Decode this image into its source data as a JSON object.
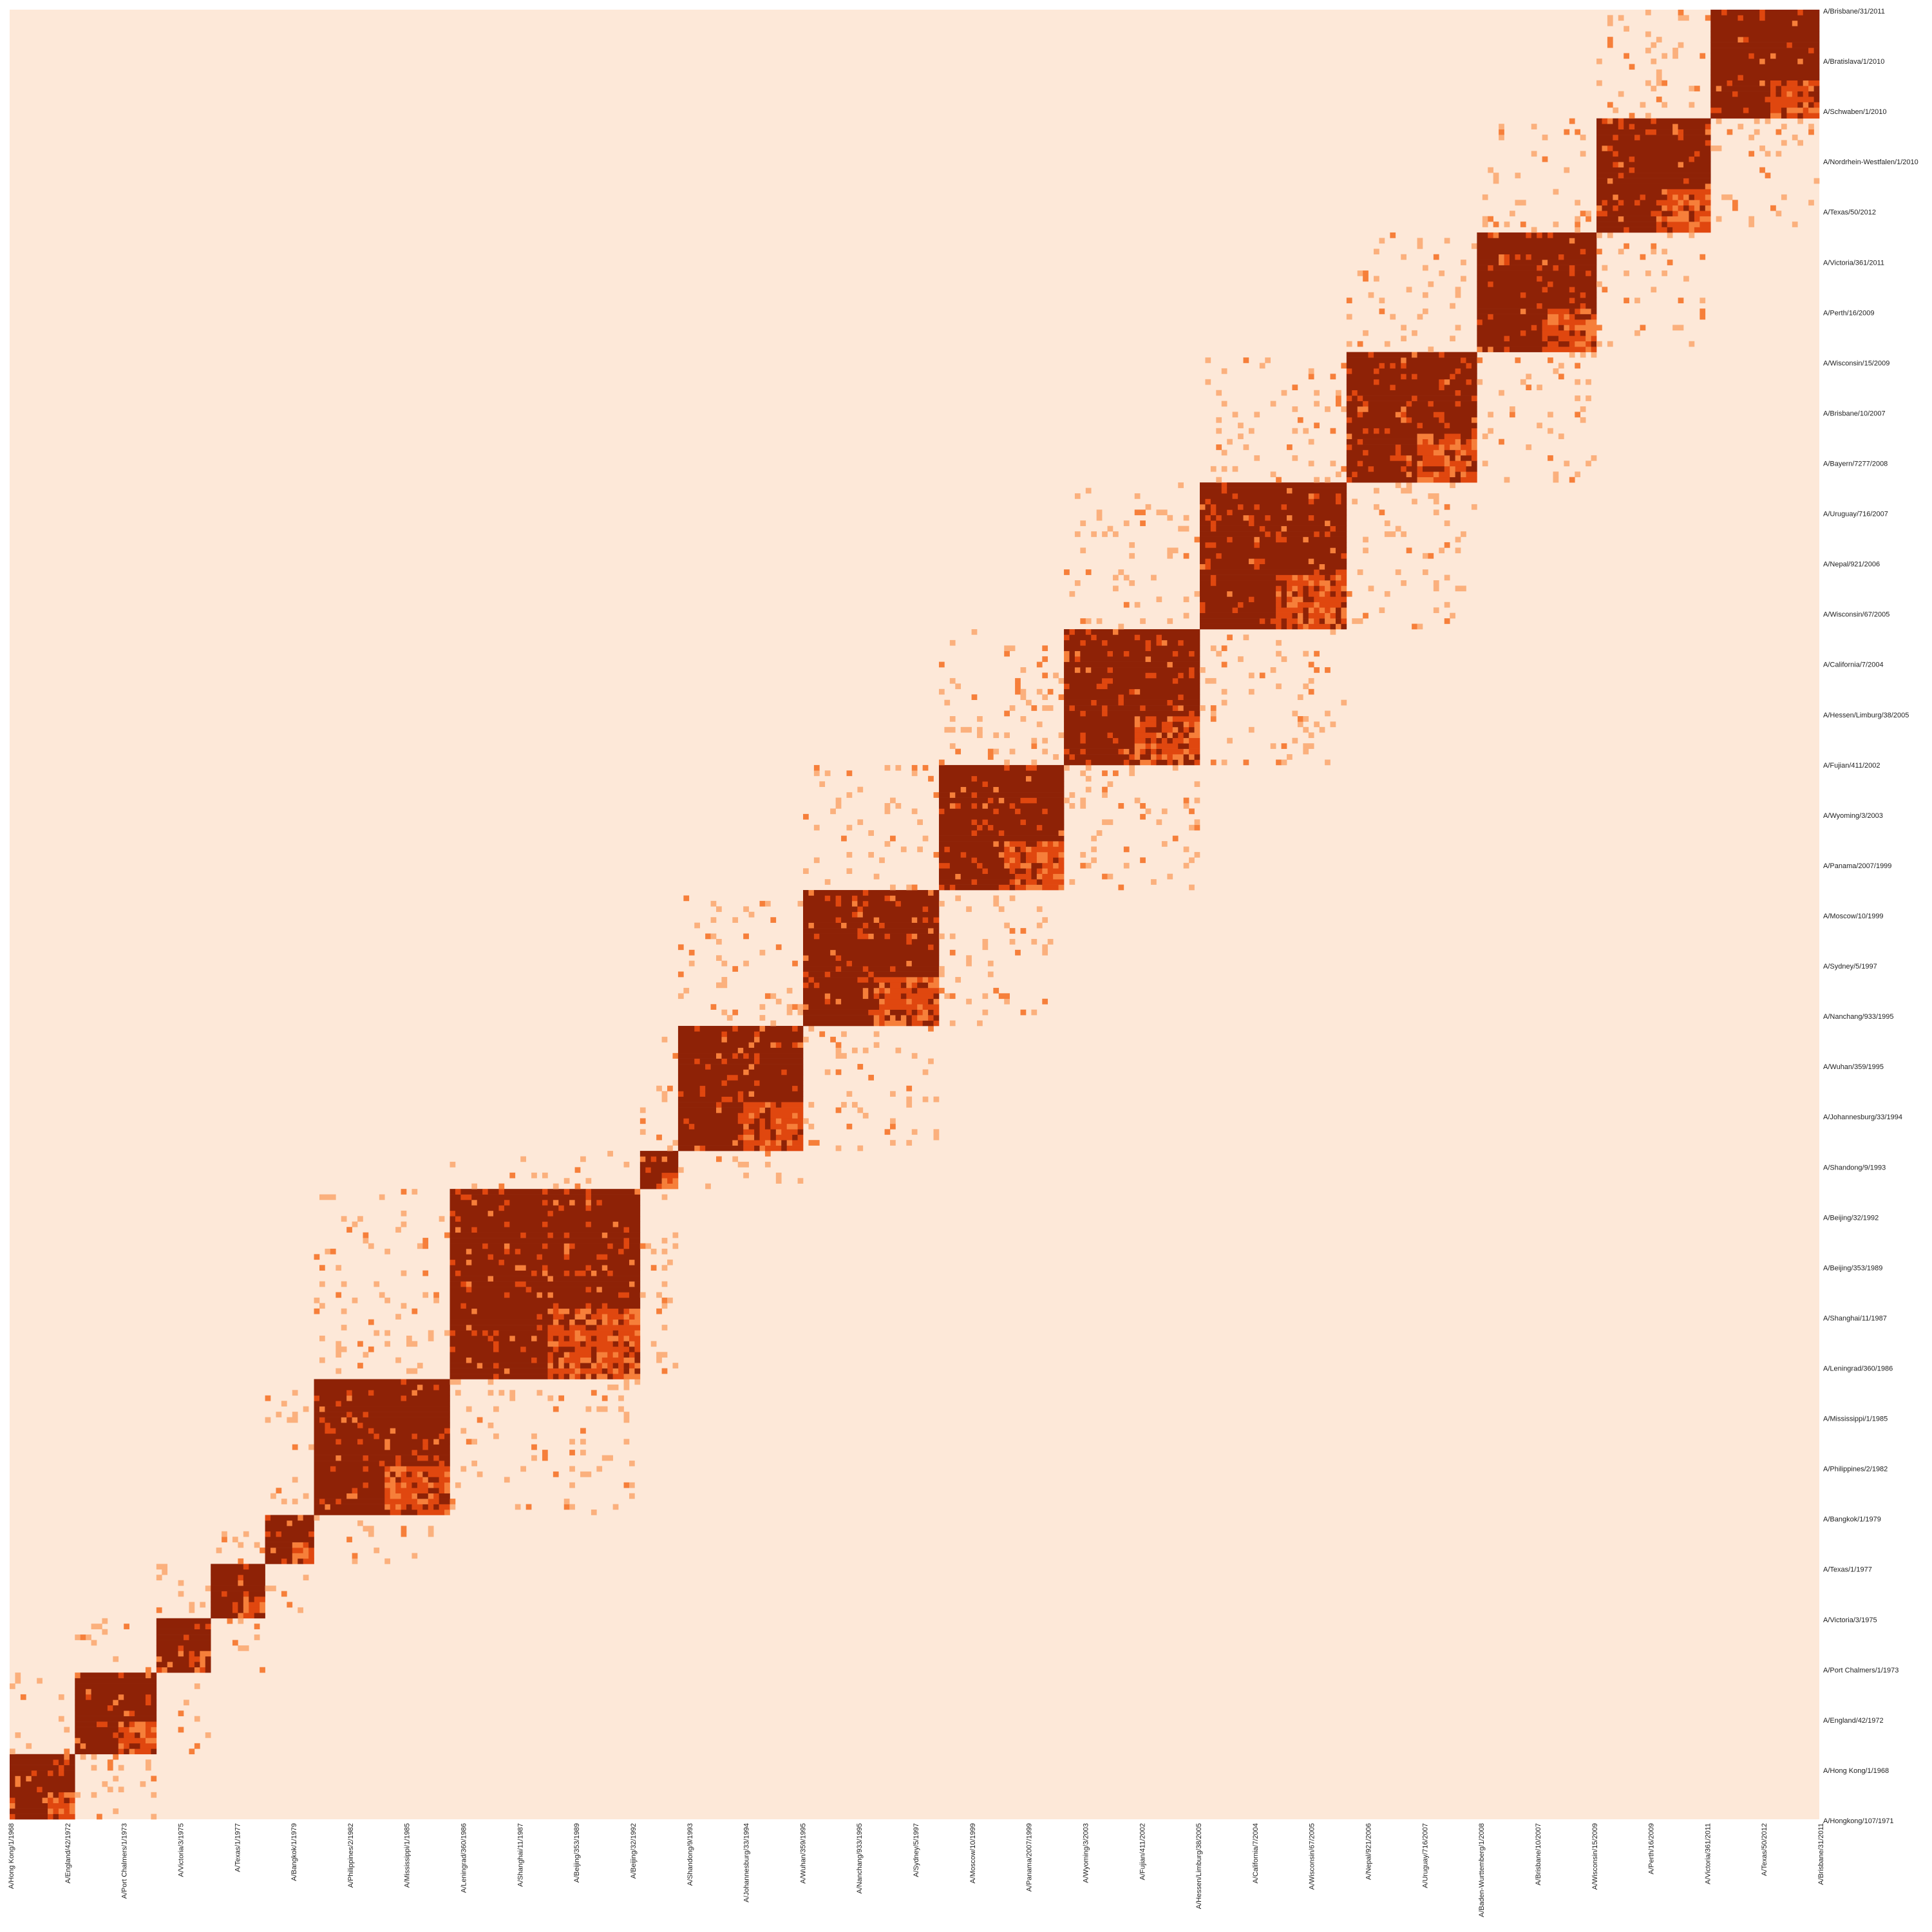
{
  "chart_data": {
    "type": "heatmap",
    "title": "",
    "xlabel": "",
    "ylabel": "",
    "colors": {
      "background": "#FDE8D8",
      "level_1": "#FBB07D",
      "level_2": "#F67F3A",
      "level_3": "#E0470F",
      "level_4": "#8E2206"
    },
    "value_levels": [
      0,
      1,
      2,
      3,
      4
    ],
    "n_strains": 333,
    "block_spans": [
      [
        0,
        11
      ],
      [
        12,
        26
      ],
      [
        27,
        36
      ],
      [
        37,
        46
      ],
      [
        47,
        55
      ],
      [
        56,
        80
      ],
      [
        81,
        115
      ],
      [
        116,
        122
      ],
      [
        123,
        145
      ],
      [
        146,
        170
      ],
      [
        171,
        193
      ],
      [
        194,
        218
      ],
      [
        219,
        245
      ],
      [
        246,
        269
      ],
      [
        270,
        291
      ],
      [
        292,
        312
      ],
      [
        313,
        332
      ]
    ],
    "row_labels_visible": [
      "A/Brisbane/31/2011",
      "A/Bratislava/1/2010",
      "A/Schwaben/1/2010",
      "A/Nordrhein-Westfalen/1/2010",
      "A/Texas/50/2012",
      "A/Victoria/361/2011",
      "A/Perth/16/2009",
      "A/Wisconsin/15/2009",
      "A/Brisbane/10/2007",
      "A/Bayern/7277/2008",
      "A/Uruguay/716/2007",
      "A/Nepal/921/2006",
      "A/Wisconsin/67/2005",
      "A/California/7/2004",
      "A/Hessen/Limburg/38/2005",
      "A/Fujian/411/2002",
      "A/Wyoming/3/2003",
      "A/Panama/2007/1999",
      "A/Moscow/10/1999",
      "A/Sydney/5/1997",
      "A/Nanchang/933/1995",
      "A/Wuhan/359/1995",
      "A/Johannesburg/33/1994",
      "A/Shandong/9/1993",
      "A/Beijing/32/1992",
      "A/Beijing/353/1989",
      "A/Shanghai/11/1987",
      "A/Leningrad/360/1986",
      "A/Mississippi/1/1985",
      "A/Philippines/2/1982",
      "A/Bangkok/1/1979",
      "A/Texas/1/1977",
      "A/Victoria/3/1975",
      "A/Port Chalmers/1/1973",
      "A/England/42/1972",
      "A/Hong Kong/1/1968",
      "A/Hongkong/107/1971"
    ],
    "column_labels_visible": [
      "A/Hong Kong/1/1968",
      "A/England/42/1972",
      "A/Port Chalmers/1/1973",
      "A/Victoria/3/1975",
      "A/Texas/1/1977",
      "A/Bangkok/1/1979",
      "A/Philippines/2/1982",
      "A/Mississippi/1/1985",
      "A/Leningrad/360/1986",
      "A/Shanghai/11/1987",
      "A/Beijing/353/1989",
      "A/Beijing/32/1992",
      "A/Shandong/9/1993",
      "A/Johannesburg/33/1994",
      "A/Wuhan/359/1995",
      "A/Nanchang/933/1995",
      "A/Sydney/5/1997",
      "A/Moscow/10/1999",
      "A/Panama/2007/1999",
      "A/Wyoming/3/2003",
      "A/Fujian/411/2002",
      "A/Hessen/Limburg/38/2005",
      "A/California/7/2004",
      "A/Wisconsin/67/2005",
      "A/Nepal/921/2006",
      "A/Uruguay/716/2007",
      "A/Baden-Wurttemberg/1/2008",
      "A/Brisbane/10/2007",
      "A/Wisconsin/15/2009",
      "A/Perth/16/2009",
      "A/Victoria/361/2011",
      "A/Texas/50/2012",
      "A/Brisbane/31/2011"
    ],
    "grid": false,
    "legend": "none"
  }
}
